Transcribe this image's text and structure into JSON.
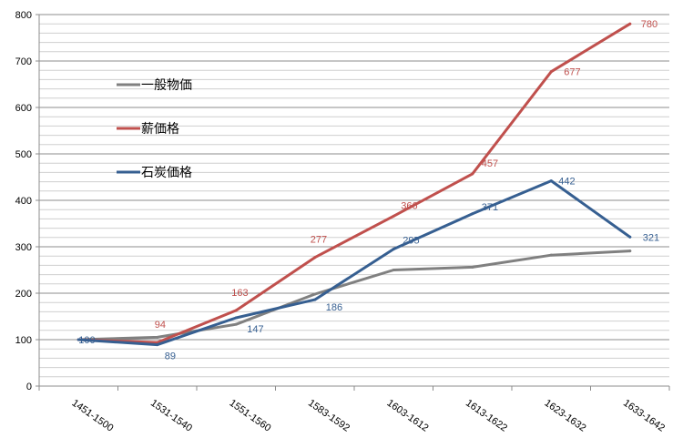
{
  "chart_data": {
    "type": "line",
    "title": "",
    "xlabel": "",
    "ylabel": "",
    "categories": [
      "1451-1500",
      "1531-1540",
      "1551-1560",
      "1583-1592",
      "1603-1612",
      "1613-1622",
      "1623-1632",
      "1633-1642"
    ],
    "ylim": [
      0,
      800
    ],
    "ytick_step": 100,
    "ytick_labels": [
      "0",
      "100",
      "200",
      "300",
      "400",
      "500",
      "600",
      "700",
      "800"
    ],
    "grid": true,
    "legend_position": "top-left",
    "series": [
      {
        "name": "一般物価",
        "color": "#808080",
        "values": [
          100,
          105,
          133,
          198,
          250,
          256,
          282,
          291
        ],
        "labels": [
          "",
          "",
          "",
          "",
          "",
          "",
          "",
          ""
        ]
      },
      {
        "name": "薪価格",
        "color": "#c0504d",
        "values": [
          100,
          94,
          163,
          277,
          366,
          457,
          677,
          780
        ],
        "labels": [
          "",
          "94",
          "163",
          "277",
          "366",
          "457",
          "677",
          "780"
        ]
      },
      {
        "name": "石炭価格",
        "color": "#365f91",
        "values": [
          100,
          89,
          147,
          186,
          295,
          371,
          442,
          321
        ],
        "labels": [
          "100",
          "89",
          "147",
          "186",
          "295",
          "371",
          "442",
          "321"
        ]
      }
    ]
  }
}
